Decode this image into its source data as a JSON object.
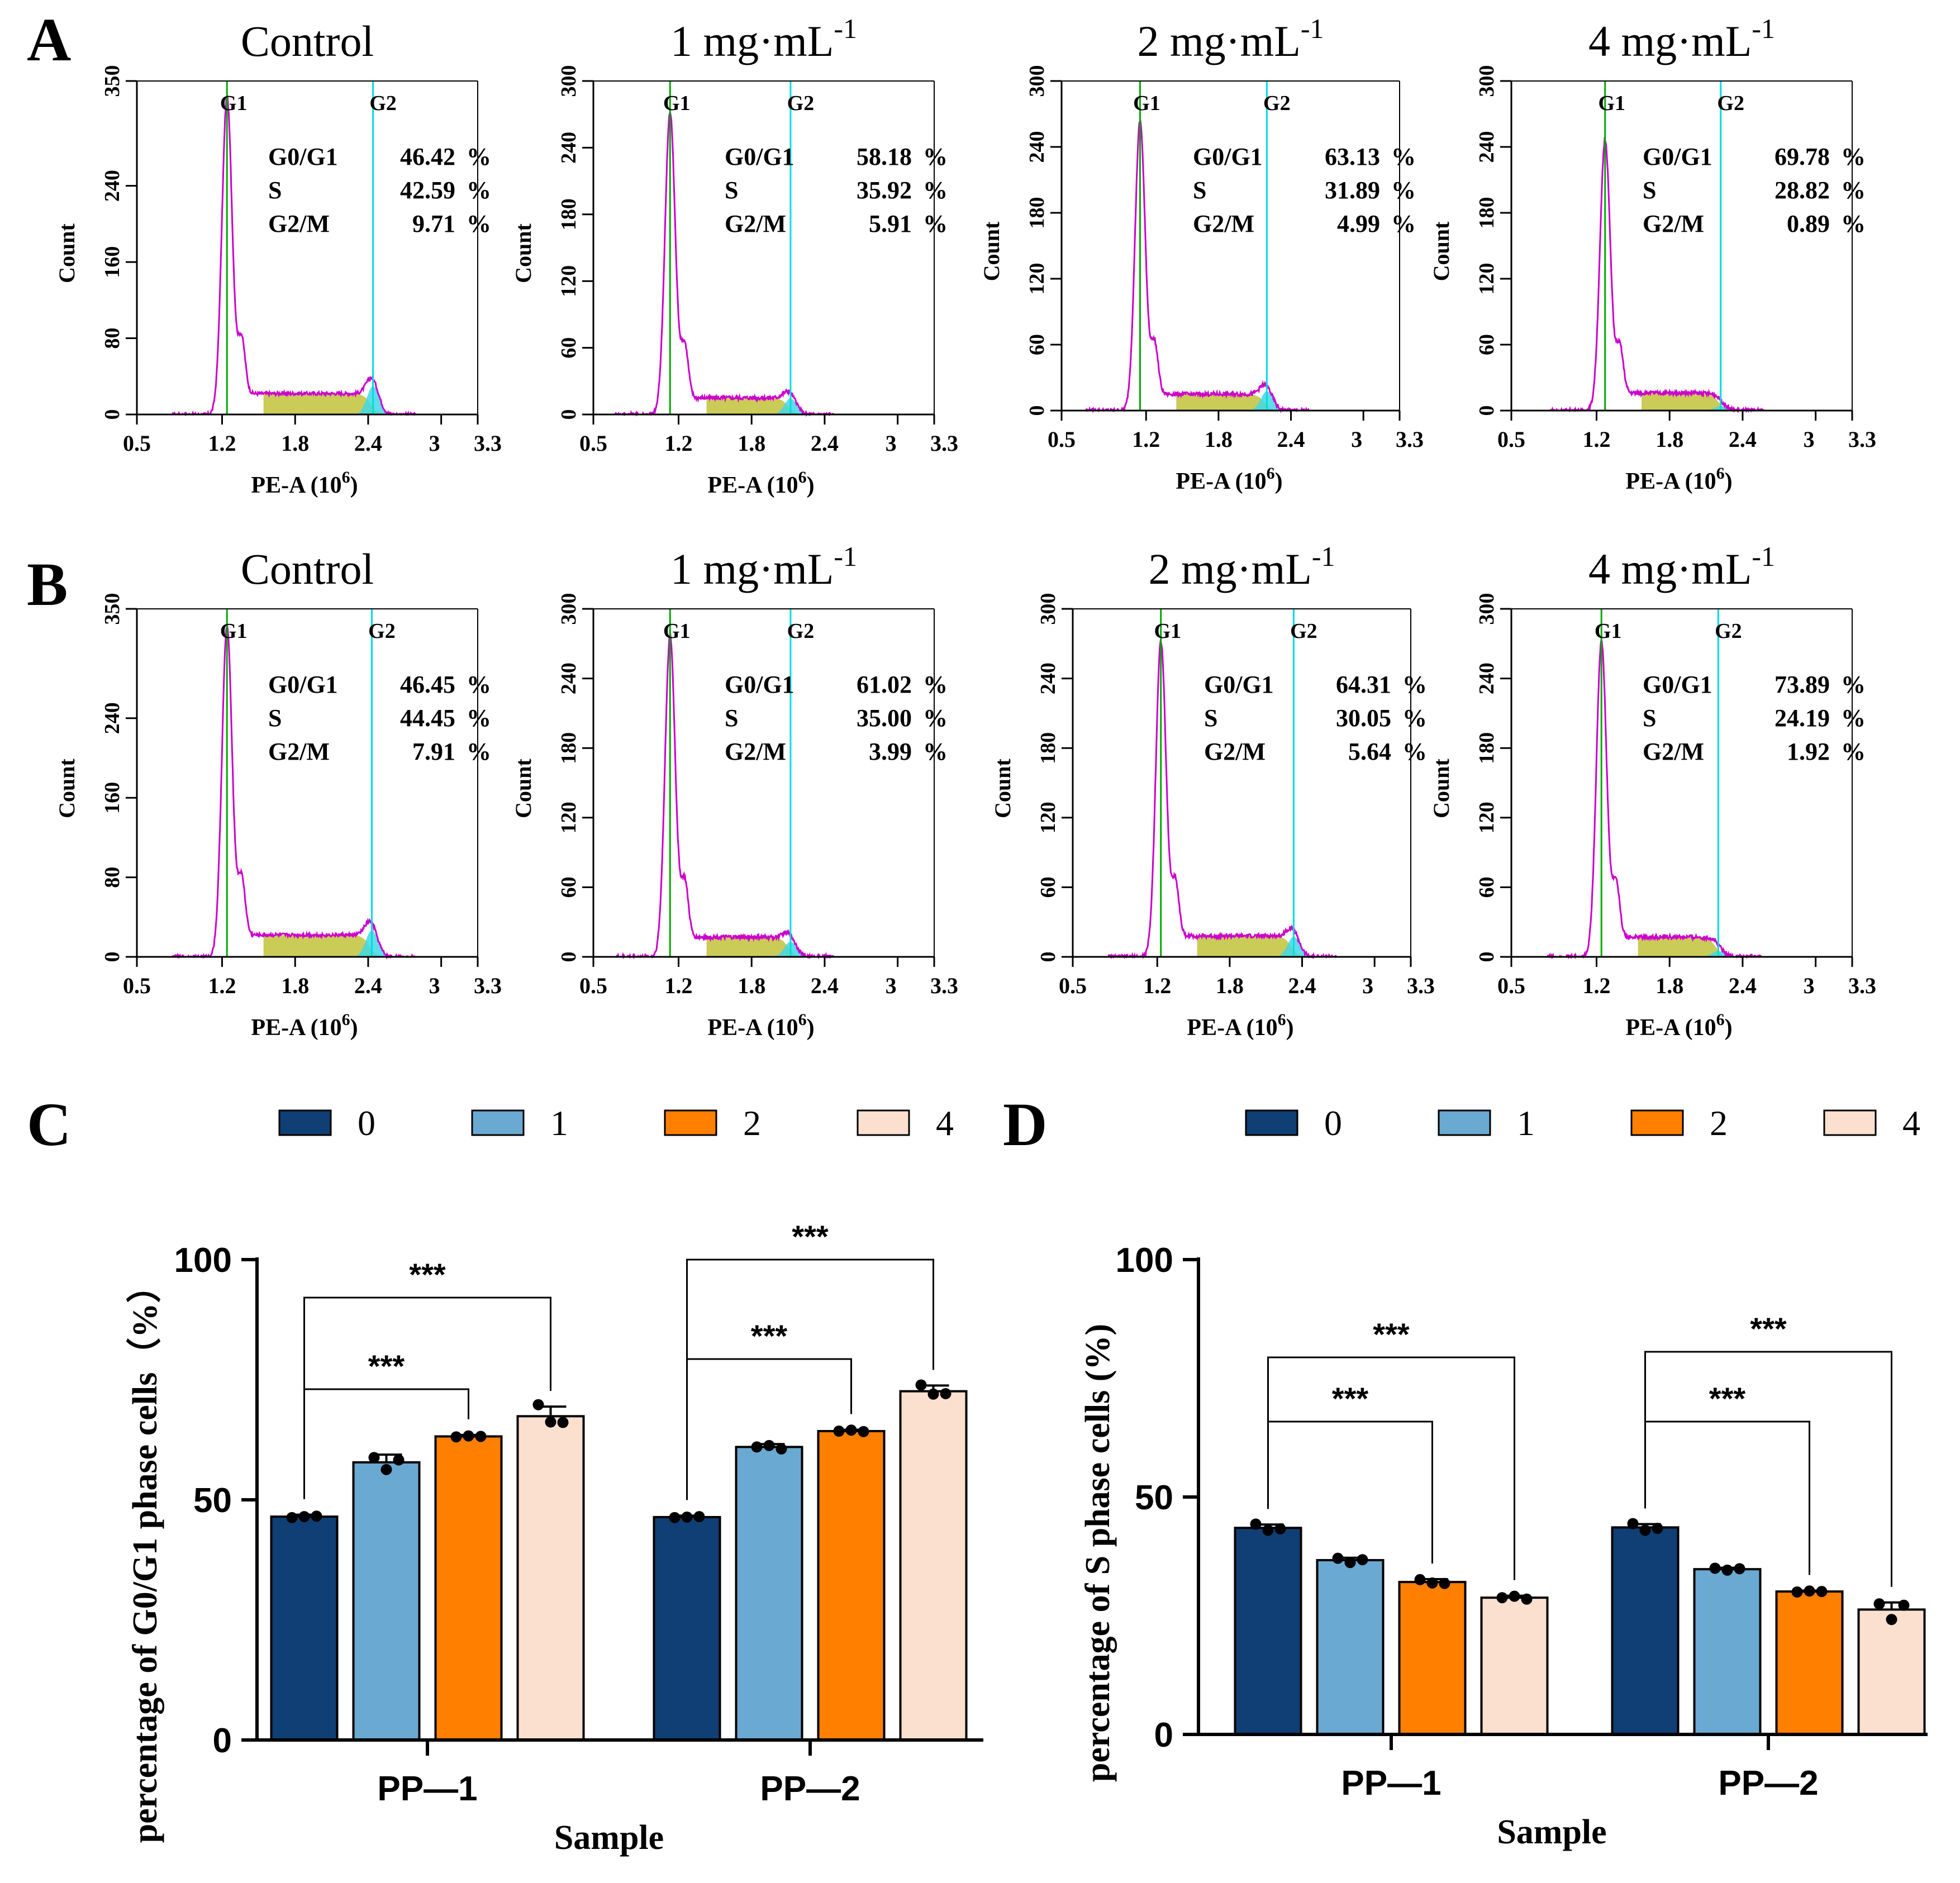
{
  "figure": {
    "panel_labels": [
      "A",
      "B",
      "C",
      "D"
    ],
    "flow_common": {
      "y_label": "Count",
      "x_label_main": "PE-A (10",
      "x_label_exp": "6",
      "x_label_close": ")",
      "x_ticks": [
        "0.5",
        "1.2",
        "1.8",
        "2.4",
        "3",
        "3.3"
      ],
      "marker_g1": "G1",
      "marker_g2": "G2",
      "phase_names": [
        "G0/G1",
        "S",
        "G2/M"
      ],
      "unit_symbol": "%"
    },
    "colors": {
      "dose_0": "#0f3f75",
      "dose_1": "#6aa9d1",
      "dose_2": "#ff7f00",
      "dose_4": "#fbe0d0",
      "g1_fill": "#3cc83c",
      "s_fill": "#c2c23a",
      "g2_fill": "#40d8e8",
      "envelope": "#cc00cc",
      "g1_line": "#00aa00",
      "g2_line": "#00dddd"
    },
    "legend_labels": [
      "0",
      "1",
      "2",
      "4"
    ],
    "significance": "***"
  },
  "chart_data": [
    {
      "id": "A-control",
      "type": "area",
      "panel": "A",
      "title_main": "Control",
      "title_sup": "",
      "ylim": [
        0,
        350
      ],
      "y_ticks": [
        "0",
        "80",
        "160",
        "240",
        "350"
      ],
      "xlim": [
        0.5,
        3.3
      ],
      "g1_position": 1.24,
      "g2_position": 2.44,
      "g1_peak_count": 330,
      "g2_peak_count": 45,
      "s_plateau_count": 22,
      "stats": {
        "g0g1": "46.42",
        "s": "42.59",
        "g2m": "9.71"
      }
    },
    {
      "id": "A-1",
      "type": "area",
      "panel": "A",
      "title_main": "1 mg·mL",
      "title_sup": "-1",
      "ylim": [
        0,
        300
      ],
      "y_ticks": [
        "0",
        "60",
        "120",
        "180",
        "240",
        "300"
      ],
      "xlim": [
        0.5,
        3.3
      ],
      "g1_position": 1.13,
      "g2_position": 2.12,
      "g1_peak_count": 270,
      "g2_peak_count": 25,
      "s_plateau_count": 15,
      "stats": {
        "g0g1": "58.18",
        "s": "35.92",
        "g2m": "5.91"
      }
    },
    {
      "id": "A-2",
      "type": "area",
      "panel": "A",
      "title_main": "2 mg·mL",
      "title_sup": "-1",
      "ylim": [
        0,
        300
      ],
      "y_ticks": [
        "0",
        "60",
        "120",
        "180",
        "240",
        "300"
      ],
      "xlim": [
        0.5,
        3.3
      ],
      "g1_position": 1.15,
      "g2_position": 2.2,
      "g1_peak_count": 262,
      "g2_peak_count": 28,
      "s_plateau_count": 15,
      "stats": {
        "g0g1": "63.13",
        "s": "31.89",
        "g2m": "4.99"
      }
    },
    {
      "id": "A-4",
      "type": "area",
      "panel": "A",
      "title_main": "4 mg·mL",
      "title_sup": "-1",
      "ylim": [
        0,
        300
      ],
      "y_ticks": [
        "0",
        "60",
        "120",
        "180",
        "240",
        "300"
      ],
      "xlim": [
        0.5,
        3.3
      ],
      "g1_position": 1.27,
      "g2_position": 2.22,
      "g1_peak_count": 245,
      "g2_peak_count": 10,
      "s_plateau_count": 16,
      "stats": {
        "g0g1": "69.78",
        "s": "28.82",
        "g2m": "0.89"
      }
    },
    {
      "id": "B-control",
      "type": "area",
      "panel": "B",
      "title_main": "Control",
      "title_sup": "",
      "ylim": [
        0,
        350
      ],
      "y_ticks": [
        "0",
        "80",
        "160",
        "240",
        "350"
      ],
      "xlim": [
        0.5,
        3.3
      ],
      "g1_position": 1.24,
      "g2_position": 2.43,
      "g1_peak_count": 330,
      "g2_peak_count": 42,
      "s_plateau_count": 22,
      "stats": {
        "g0g1": "46.45",
        "s": "44.45",
        "g2m": "7.91"
      }
    },
    {
      "id": "B-1",
      "type": "area",
      "panel": "B",
      "title_main": "1 mg·mL",
      "title_sup": "-1",
      "ylim": [
        0,
        300
      ],
      "y_ticks": [
        "0",
        "60",
        "120",
        "180",
        "240",
        "300"
      ],
      "xlim": [
        0.5,
        3.3
      ],
      "g1_position": 1.13,
      "g2_position": 2.12,
      "g1_peak_count": 275,
      "g2_peak_count": 25,
      "s_plateau_count": 17,
      "stats": {
        "g0g1": "61.02",
        "s": "35.00",
        "g2m": "3.99"
      }
    },
    {
      "id": "B-2",
      "type": "area",
      "panel": "B",
      "title_main": "2 mg·mL",
      "title_sup": "-1",
      "ylim": [
        0,
        300
      ],
      "y_ticks": [
        "0",
        "60",
        "120",
        "180",
        "240",
        "300"
      ],
      "xlim": [
        0.5,
        3.3
      ],
      "g1_position": 1.23,
      "g2_position": 2.33,
      "g1_peak_count": 270,
      "g2_peak_count": 30,
      "s_plateau_count": 18,
      "stats": {
        "g0g1": "64.31",
        "s": "30.05",
        "g2m": "5.64"
      }
    },
    {
      "id": "B-4",
      "type": "area",
      "panel": "B",
      "title_main": "4 mg·mL",
      "title_sup": "-1",
      "ylim": [
        0,
        300
      ],
      "y_ticks": [
        "0",
        "60",
        "120",
        "180",
        "240",
        "300"
      ],
      "xlim": [
        0.5,
        3.3
      ],
      "g1_position": 1.24,
      "g2_position": 2.2,
      "g1_peak_count": 270,
      "g2_peak_count": 17,
      "s_plateau_count": 17,
      "stats": {
        "g0g1": "73.89",
        "s": "24.19",
        "g2m": "1.92"
      }
    },
    {
      "id": "C",
      "type": "bar",
      "panel": "C",
      "categories": [
        "PP—1",
        "PP—2"
      ],
      "series": [
        {
          "name": "0",
          "values": [
            46.5,
            46.4
          ],
          "error": [
            0.4,
            0.3
          ],
          "points": [
            [
              46.3,
              46.5,
              46.6
            ],
            [
              46.3,
              46.4,
              46.5
            ]
          ]
        },
        {
          "name": "1",
          "values": [
            57.8,
            61.0
          ],
          "error": [
            1.6,
            0.6
          ],
          "points": [
            [
              58.8,
              56.3,
              58.3
            ],
            [
              61.0,
              61.3,
              60.6
            ]
          ]
        },
        {
          "name": "2",
          "values": [
            63.2,
            64.3
          ],
          "error": [
            0.3,
            0.3
          ],
          "points": [
            [
              63.1,
              63.3,
              63.2
            ],
            [
              64.3,
              64.5,
              64.2
            ]
          ]
        },
        {
          "name": "4",
          "values": [
            67.4,
            72.6
          ],
          "error": [
            2.0,
            1.2
          ],
          "points": [
            [
              69.8,
              66.2,
              66.1
            ],
            [
              73.9,
              72.0,
              72.1
            ]
          ]
        }
      ],
      "xlabel": "Sample",
      "ylabel": "percentage of G0/G1 phase cells（%）",
      "ylim": [
        0,
        100
      ],
      "y_ticks": [
        "0",
        "50",
        "100"
      ],
      "comparisons": [
        {
          "category": 0,
          "from": 0,
          "to": 2,
          "label": "***"
        },
        {
          "category": 0,
          "from": 0,
          "to": 3,
          "label": "***"
        },
        {
          "category": 1,
          "from": 0,
          "to": 2,
          "label": "***"
        },
        {
          "category": 1,
          "from": 0,
          "to": 3,
          "label": "***"
        }
      ]
    },
    {
      "id": "D",
      "type": "bar",
      "panel": "D",
      "categories": [
        "PP—1",
        "PP—2"
      ],
      "series": [
        {
          "name": "0",
          "values": [
            43.5,
            43.6
          ],
          "error": [
            0.7,
            0.7
          ],
          "points": [
            [
              44.3,
              43.0,
              43.3
            ],
            [
              44.4,
              43.0,
              43.4
            ]
          ]
        },
        {
          "name": "1",
          "values": [
            36.7,
            34.8
          ],
          "error": [
            0.5,
            0.3
          ],
          "points": [
            [
              37.1,
              36.2,
              36.8
            ],
            [
              35.0,
              34.6,
              34.9
            ]
          ]
        },
        {
          "name": "2",
          "values": [
            32.1,
            30.1
          ],
          "error": [
            0.6,
            0.2
          ],
          "points": [
            [
              32.6,
              31.9,
              31.8
            ],
            [
              30.0,
              30.2,
              30.1
            ]
          ]
        },
        {
          "name": "4",
          "values": [
            28.8,
            26.3
          ],
          "error": [
            0.4,
            1.5
          ],
          "points": [
            [
              28.8,
              29.1,
              28.5
            ],
            [
              27.5,
              24.2,
              27.2
            ]
          ]
        }
      ],
      "xlabel": "Sample",
      "ylabel": "percentage of S phase cells (%)",
      "ylim": [
        0,
        100
      ],
      "y_ticks": [
        "0",
        "50",
        "100"
      ],
      "comparisons": [
        {
          "category": 0,
          "from": 0,
          "to": 2,
          "label": "***"
        },
        {
          "category": 0,
          "from": 0,
          "to": 3,
          "label": "***"
        },
        {
          "category": 1,
          "from": 0,
          "to": 2,
          "label": "***"
        },
        {
          "category": 1,
          "from": 0,
          "to": 3,
          "label": "***"
        }
      ]
    }
  ]
}
